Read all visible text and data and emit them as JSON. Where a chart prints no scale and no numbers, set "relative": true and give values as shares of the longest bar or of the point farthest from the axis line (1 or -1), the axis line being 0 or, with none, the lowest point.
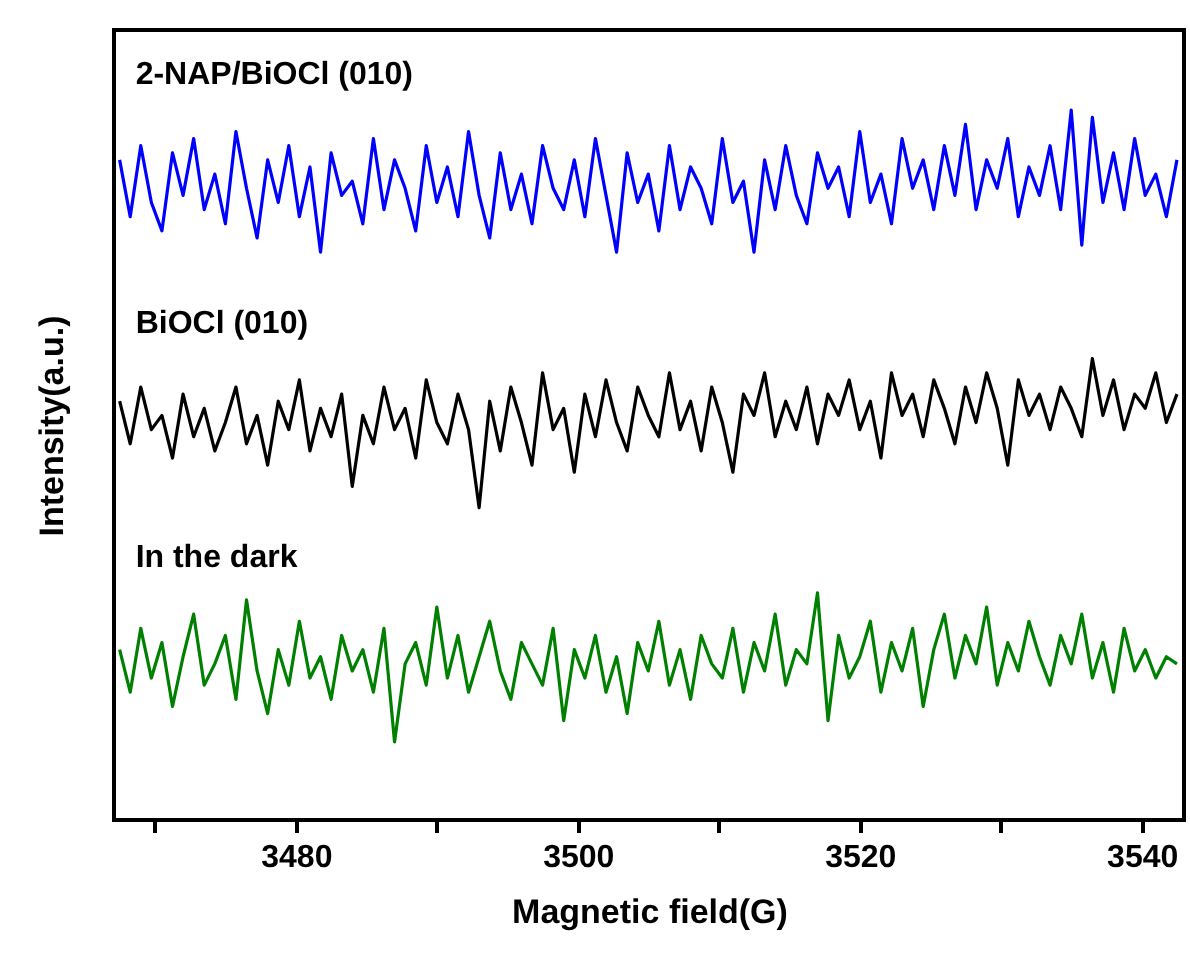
{
  "chart_data": {
    "type": "line",
    "xlabel": "Magnetic field(G)",
    "ylabel": "Intensity(a.u.)",
    "relative": true,
    "grid": false,
    "legend": false,
    "marker": "none",
    "line_style": "solid",
    "xlim": [
      3467.1,
      3543
    ],
    "xticks": [
      {
        "value": 3470,
        "label": null
      },
      3480,
      {
        "value": 3490,
        "label": null
      },
      3500,
      {
        "value": 3510,
        "label": null
      },
      3520,
      {
        "value": 3530,
        "label": null
      },
      3540
    ],
    "x": [
      3467.5,
      3468.25,
      3469,
      3469.75,
      3470.5,
      3471.25,
      3472,
      3472.75,
      3473.5,
      3474.25,
      3475,
      3475.75,
      3476.5,
      3477.25,
      3478,
      3478.75,
      3479.5,
      3480.25,
      3481,
      3481.75,
      3482.5,
      3483.25,
      3484,
      3484.75,
      3485.5,
      3486.25,
      3487,
      3487.75,
      3488.5,
      3489.25,
      3490,
      3490.75,
      3491.5,
      3492.25,
      3493,
      3493.75,
      3494.5,
      3495.25,
      3496,
      3496.75,
      3497.5,
      3498.25,
      3499,
      3499.75,
      3500.5,
      3501.25,
      3502,
      3502.75,
      3503.5,
      3504.25,
      3505,
      3505.75,
      3506.5,
      3507.25,
      3508,
      3508.75,
      3509.5,
      3510.25,
      3511,
      3511.75,
      3512.5,
      3513.25,
      3514,
      3514.75,
      3515.5,
      3516.25,
      3517,
      3517.75,
      3518.5,
      3519.25,
      3520,
      3520.75,
      3521.5,
      3522.25,
      3523,
      3523.75,
      3524.5,
      3525.25,
      3526,
      3526.75,
      3527.5,
      3528.25,
      3529,
      3529.75,
      3530.5,
      3531.25,
      3532,
      3532.75,
      3533.5,
      3534.25,
      3535,
      3535.75,
      3536.5,
      3537.25,
      3538,
      3538.75,
      3539.5,
      3540.25,
      3541,
      3541.75,
      3542.5
    ],
    "series": [
      {
        "name": "2-NAP/BiOCl (010)",
        "color": "#0000ff",
        "values": [
          0.93,
          0.85,
          0.95,
          0.87,
          0.83,
          0.94,
          0.88,
          0.96,
          0.86,
          0.91,
          0.84,
          0.97,
          0.89,
          0.82,
          0.93,
          0.87,
          0.95,
          0.85,
          0.92,
          0.8,
          0.94,
          0.88,
          0.9,
          0.84,
          0.96,
          0.86,
          0.93,
          0.89,
          0.83,
          0.95,
          0.87,
          0.92,
          0.85,
          0.97,
          0.88,
          0.82,
          0.94,
          0.86,
          0.91,
          0.84,
          0.95,
          0.89,
          0.86,
          0.93,
          0.85,
          0.96,
          0.88,
          0.8,
          0.94,
          0.87,
          0.91,
          0.83,
          0.95,
          0.86,
          0.92,
          0.89,
          0.84,
          0.96,
          0.87,
          0.9,
          0.8,
          0.93,
          0.86,
          0.95,
          0.88,
          0.84,
          0.94,
          0.89,
          0.92,
          0.85,
          0.97,
          0.87,
          0.91,
          0.84,
          0.96,
          0.89,
          0.93,
          0.86,
          0.95,
          0.88,
          0.98,
          0.86,
          0.93,
          0.89,
          0.96,
          0.85,
          0.92,
          0.88,
          0.95,
          0.86,
          1.0,
          0.81,
          0.99,
          0.87,
          0.94,
          0.86,
          0.96,
          0.88,
          0.91,
          0.85,
          0.93
        ]
      },
      {
        "name": "BiOCl (010)",
        "color": "#000000",
        "values": [
          0.59,
          0.53,
          0.61,
          0.55,
          0.57,
          0.51,
          0.6,
          0.54,
          0.58,
          0.52,
          0.56,
          0.61,
          0.53,
          0.57,
          0.5,
          0.59,
          0.55,
          0.62,
          0.52,
          0.58,
          0.54,
          0.6,
          0.47,
          0.57,
          0.53,
          0.61,
          0.55,
          0.58,
          0.51,
          0.62,
          0.56,
          0.53,
          0.6,
          0.55,
          0.44,
          0.59,
          0.52,
          0.61,
          0.56,
          0.5,
          0.63,
          0.55,
          0.58,
          0.49,
          0.6,
          0.54,
          0.62,
          0.56,
          0.52,
          0.61,
          0.57,
          0.54,
          0.63,
          0.55,
          0.59,
          0.52,
          0.61,
          0.56,
          0.49,
          0.6,
          0.57,
          0.63,
          0.54,
          0.59,
          0.55,
          0.61,
          0.53,
          0.6,
          0.57,
          0.62,
          0.55,
          0.59,
          0.51,
          0.63,
          0.57,
          0.6,
          0.54,
          0.62,
          0.58,
          0.53,
          0.61,
          0.56,
          0.63,
          0.58,
          0.5,
          0.62,
          0.57,
          0.6,
          0.55,
          0.61,
          0.58,
          0.54,
          0.65,
          0.57,
          0.62,
          0.55,
          0.6,
          0.58,
          0.63,
          0.56,
          0.6
        ]
      },
      {
        "name": "In the dark",
        "color": "#008000",
        "values": [
          0.24,
          0.18,
          0.27,
          0.2,
          0.25,
          0.16,
          0.23,
          0.29,
          0.19,
          0.22,
          0.26,
          0.17,
          0.31,
          0.21,
          0.15,
          0.24,
          0.19,
          0.28,
          0.2,
          0.23,
          0.17,
          0.26,
          0.21,
          0.24,
          0.18,
          0.27,
          0.11,
          0.22,
          0.25,
          0.19,
          0.3,
          0.2,
          0.26,
          0.18,
          0.23,
          0.28,
          0.21,
          0.17,
          0.25,
          0.22,
          0.19,
          0.27,
          0.14,
          0.24,
          0.2,
          0.26,
          0.18,
          0.23,
          0.15,
          0.25,
          0.21,
          0.28,
          0.19,
          0.24,
          0.17,
          0.26,
          0.22,
          0.2,
          0.27,
          0.18,
          0.25,
          0.21,
          0.29,
          0.19,
          0.24,
          0.22,
          0.32,
          0.14,
          0.26,
          0.2,
          0.23,
          0.28,
          0.18,
          0.25,
          0.21,
          0.27,
          0.16,
          0.24,
          0.29,
          0.2,
          0.26,
          0.22,
          0.3,
          0.19,
          0.25,
          0.21,
          0.28,
          0.23,
          0.19,
          0.26,
          0.22,
          0.29,
          0.2,
          0.25,
          0.18,
          0.27,
          0.21,
          0.24,
          0.2,
          0.23,
          0.22
        ]
      }
    ]
  }
}
